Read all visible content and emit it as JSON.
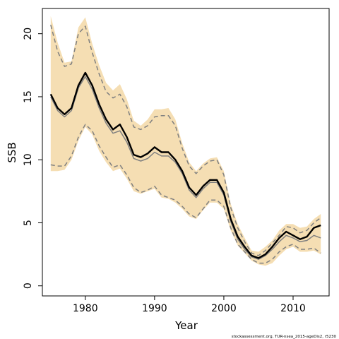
{
  "chart_data": {
    "type": "line",
    "xlabel": "Year",
    "ylabel": "SSB",
    "xlim": [
      1973.8,
      2015.2
    ],
    "ylim": [
      -0.8,
      22.0
    ],
    "x_ticks": [
      1980,
      1990,
      2000,
      2010
    ],
    "y_ticks": [
      0,
      5,
      10,
      15,
      20
    ],
    "colors": {
      "band": "#f5deb3",
      "main": "#000000",
      "dashed": "#808080",
      "gray": "#808080"
    },
    "years": [
      1975,
      1976,
      1977,
      1978,
      1979,
      1980,
      1981,
      1982,
      1983,
      1984,
      1985,
      1986,
      1987,
      1988,
      1989,
      1990,
      1991,
      1992,
      1993,
      1994,
      1995,
      1996,
      1997,
      1998,
      1999,
      2000,
      2001,
      2002,
      2003,
      2004,
      2005,
      2006,
      2007,
      2008,
      2009,
      2010,
      2011,
      2012,
      2013,
      2014
    ],
    "series": [
      {
        "role": "band_upper",
        "values": [
          21.4,
          19.3,
          17.7,
          17.8,
          20.5,
          21.3,
          19.2,
          17.5,
          16.1,
          15.5,
          16.0,
          14.8,
          13.1,
          12.7,
          13.2,
          14.0,
          14.0,
          14.1,
          13.2,
          11.3,
          9.8,
          9.1,
          9.7,
          10.1,
          10.2,
          9.1,
          6.5,
          4.9,
          3.8,
          2.8,
          2.7,
          3.1,
          3.6,
          4.4,
          4.9,
          4.9,
          4.6,
          4.7,
          5.3,
          5.7
        ]
      },
      {
        "role": "band_lower",
        "values": [
          9.1,
          9.1,
          9.2,
          10.0,
          11.5,
          12.6,
          12.0,
          10.7,
          9.8,
          9.1,
          9.3,
          8.5,
          7.5,
          7.3,
          7.5,
          7.7,
          7.0,
          6.9,
          6.6,
          6.1,
          5.5,
          5.3,
          6.0,
          6.6,
          6.6,
          6.1,
          4.4,
          3.2,
          2.6,
          2.0,
          1.7,
          1.6,
          1.8,
          2.4,
          2.9,
          3.1,
          2.7,
          2.7,
          2.8,
          2.5
        ]
      },
      {
        "role": "upper_dashed",
        "values": [
          20.7,
          18.6,
          17.4,
          17.6,
          20.0,
          20.6,
          18.5,
          16.8,
          15.4,
          14.9,
          15.2,
          14.2,
          12.6,
          12.4,
          12.7,
          13.4,
          13.5,
          13.5,
          12.7,
          10.9,
          9.5,
          8.9,
          9.5,
          9.9,
          10.0,
          8.8,
          6.2,
          4.6,
          3.5,
          2.6,
          2.4,
          2.8,
          3.4,
          4.0,
          4.7,
          4.6,
          4.2,
          4.4,
          5.0,
          5.4
        ]
      },
      {
        "role": "lower_dashed",
        "values": [
          9.6,
          9.5,
          9.5,
          10.3,
          11.8,
          12.8,
          12.3,
          11.1,
          10.2,
          9.4,
          9.6,
          8.8,
          7.8,
          7.4,
          7.6,
          7.9,
          7.2,
          7.0,
          6.8,
          6.3,
          5.7,
          5.4,
          6.1,
          6.8,
          6.8,
          6.3,
          4.6,
          3.3,
          2.7,
          2.1,
          1.8,
          1.8,
          2.1,
          2.7,
          3.1,
          3.3,
          2.9,
          2.9,
          3.0,
          2.6
        ]
      },
      {
        "role": "gray_line",
        "values": [
          15.0,
          13.9,
          13.4,
          13.9,
          15.7,
          16.6,
          15.6,
          14.1,
          12.9,
          12.1,
          12.3,
          11.4,
          10.1,
          9.9,
          10.1,
          10.6,
          10.3,
          10.3,
          9.8,
          8.9,
          7.6,
          7.0,
          7.7,
          8.2,
          8.2,
          7.2,
          5.1,
          3.7,
          2.9,
          2.3,
          2.1,
          2.4,
          2.9,
          3.5,
          4.0,
          3.8,
          3.5,
          3.6,
          4.0,
          3.8
        ]
      },
      {
        "role": "main_line",
        "values": [
          15.2,
          14.1,
          13.6,
          14.1,
          15.9,
          16.9,
          15.9,
          14.4,
          13.2,
          12.4,
          12.8,
          11.8,
          10.4,
          10.2,
          10.5,
          11.0,
          10.6,
          10.6,
          10.0,
          9.1,
          7.8,
          7.2,
          7.9,
          8.4,
          8.4,
          7.4,
          5.3,
          3.9,
          3.1,
          2.4,
          2.2,
          2.5,
          3.1,
          3.8,
          4.3,
          4.0,
          3.7,
          3.9,
          4.6,
          4.8
        ]
      }
    ]
  },
  "credit": "stockassessment.org, TUR-nsea_2015-ageDis2, r5230"
}
